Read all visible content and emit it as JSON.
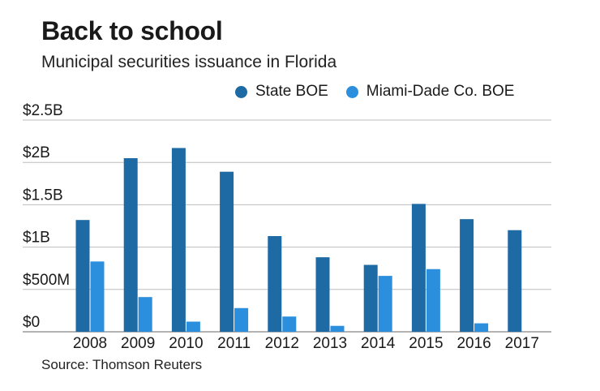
{
  "header": {
    "title": "Back to school",
    "subtitle": "Municipal securities issuance in Florida"
  },
  "legend": {
    "items": [
      {
        "label": "State BOE",
        "color": "#1e6aa5"
      },
      {
        "label": "Miami-Dade Co. BOE",
        "color": "#2b8fdd"
      }
    ]
  },
  "footer": {
    "source": "Source: Thomson Reuters"
  },
  "chart_data": {
    "type": "bar",
    "title": "Back to school",
    "subtitle": "Municipal securities issuance in Florida",
    "xlabel": "",
    "ylabel": "",
    "categories": [
      "2008",
      "2009",
      "2010",
      "2011",
      "2012",
      "2013",
      "2014",
      "2015",
      "2016",
      "2017"
    ],
    "series": [
      {
        "name": "State BOE",
        "color": "#1e6aa5",
        "values": [
          1.32,
          2.05,
          2.17,
          1.89,
          1.13,
          0.88,
          0.79,
          1.51,
          1.33,
          1.2
        ]
      },
      {
        "name": "Miami-Dade Co. BOE",
        "color": "#2b8fdd",
        "values": [
          0.83,
          0.41,
          0.12,
          0.28,
          0.18,
          0.07,
          0.66,
          0.74,
          0.1,
          0
        ]
      }
    ],
    "ylim": [
      0,
      2.5
    ],
    "yticks": [
      {
        "value": 0,
        "label": "$0"
      },
      {
        "value": 0.5,
        "label": "$500M"
      },
      {
        "value": 1,
        "label": "$1B"
      },
      {
        "value": 1.5,
        "label": "$1.5B"
      },
      {
        "value": 2,
        "label": "$2B"
      },
      {
        "value": 2.5,
        "label": "$2.5B"
      }
    ],
    "grid": true,
    "legend_position": "top-right"
  }
}
